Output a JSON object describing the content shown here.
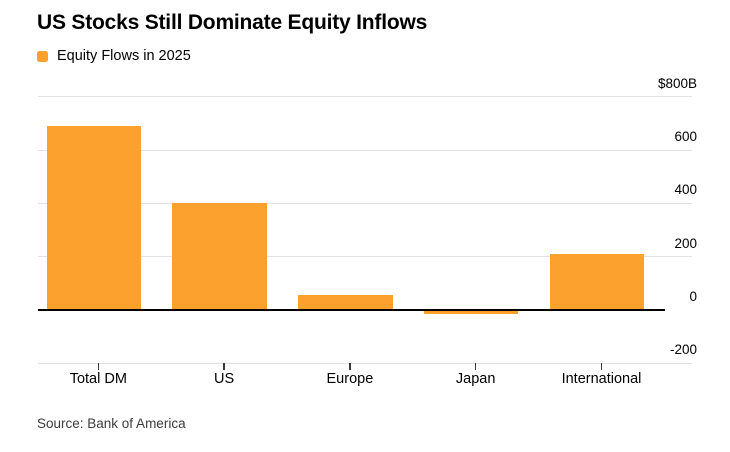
{
  "header": {
    "title": "US Stocks Still Dominate Equity Inflows"
  },
  "legend": {
    "label": "Equity Flows in 2025",
    "swatch_icon": "orange-square-icon"
  },
  "source": {
    "label": "Source: Bank of America"
  },
  "colors": {
    "bar": "#FCA12E",
    "grid": "#E2E2E2",
    "zero_line": "#000000",
    "tick": "#3A3A3A",
    "text": "#000000",
    "source_text": "#3C3C3C",
    "background": "#FFFFFF"
  },
  "chart_data": {
    "type": "bar",
    "title": "US Stocks Still Dominate Equity Inflows",
    "series_name": "Equity Flows in 2025",
    "categories": [
      "Total DM",
      "US",
      "Europe",
      "Japan",
      "International"
    ],
    "values": [
      690,
      400,
      55,
      -10,
      210
    ],
    "unit": "billions of US dollars",
    "xlabel": "",
    "ylabel": "",
    "ylim": [
      -200,
      800
    ],
    "y_ticks": [
      {
        "value": 800,
        "label": "$800B"
      },
      {
        "value": 600,
        "label": "600"
      },
      {
        "value": 400,
        "label": "400"
      },
      {
        "value": 200,
        "label": "200"
      },
      {
        "value": 0,
        "label": "0"
      },
      {
        "value": -200,
        "label": "-200"
      }
    ],
    "grid": true,
    "y_axis_side": "right",
    "legend_position": "top-left",
    "source": "Bank of America"
  }
}
